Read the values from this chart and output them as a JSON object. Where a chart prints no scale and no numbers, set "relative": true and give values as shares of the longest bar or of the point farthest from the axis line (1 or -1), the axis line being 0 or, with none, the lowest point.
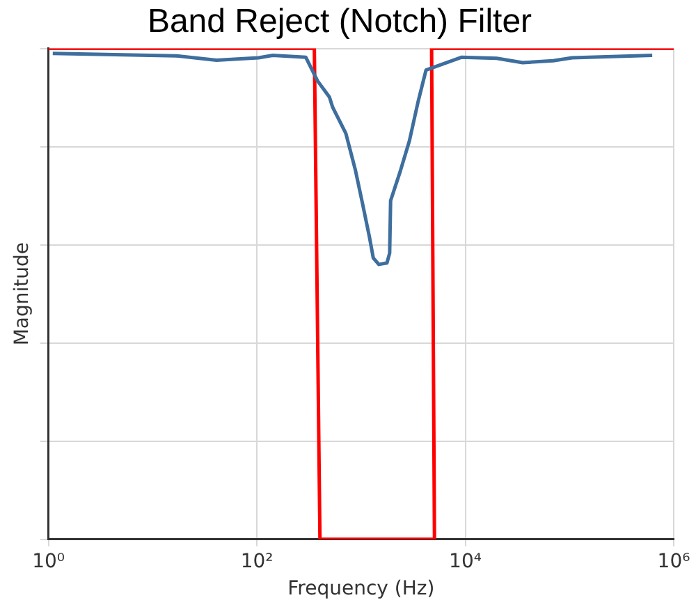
{
  "chart_data": {
    "type": "line",
    "title": "Band Reject (Notch) Filter",
    "xlabel": "Frequency (Hz)",
    "ylabel": "Magnitude",
    "relative": true,
    "log": "x",
    "grid": true,
    "legend": false,
    "marker": "none",
    "line_style": "solid",
    "xlim": [
      1,
      1000000
    ],
    "xticks": [
      {
        "value": 1,
        "label": "10⁰"
      },
      {
        "value": 100,
        "label": "10²"
      },
      {
        "value": 10000,
        "label": "10⁴"
      },
      {
        "value": 1000000,
        "label": "10⁶"
      }
    ],
    "series": [
      {
        "color": "#3e6e9e",
        "x": [
          1.1,
          16.8,
          41,
          104,
          142,
          295,
          382,
          497,
          534,
          714,
          880,
          1030,
          1200,
          1310,
          1480,
          1770,
          1880,
          1920,
          2370,
          2910,
          3510,
          4200,
          9160,
          20000,
          35500,
          69800,
          106000,
          622000
        ],
        "values": [
          0.99,
          0.985,
          0.976,
          0.981,
          0.986,
          0.982,
          0.934,
          0.901,
          0.88,
          0.827,
          0.753,
          0.685,
          0.617,
          0.573,
          0.56,
          0.563,
          0.583,
          0.69,
          0.749,
          0.812,
          0.89,
          0.956,
          0.982,
          0.98,
          0.971,
          0.975,
          0.981,
          0.986
        ]
      },
      {
        "color": "#ff0000",
        "x": [
          1,
          356,
          403,
          5060,
          4750,
          1000000
        ],
        "values": [
          1,
          1,
          0,
          0,
          1,
          1
        ]
      }
    ]
  }
}
